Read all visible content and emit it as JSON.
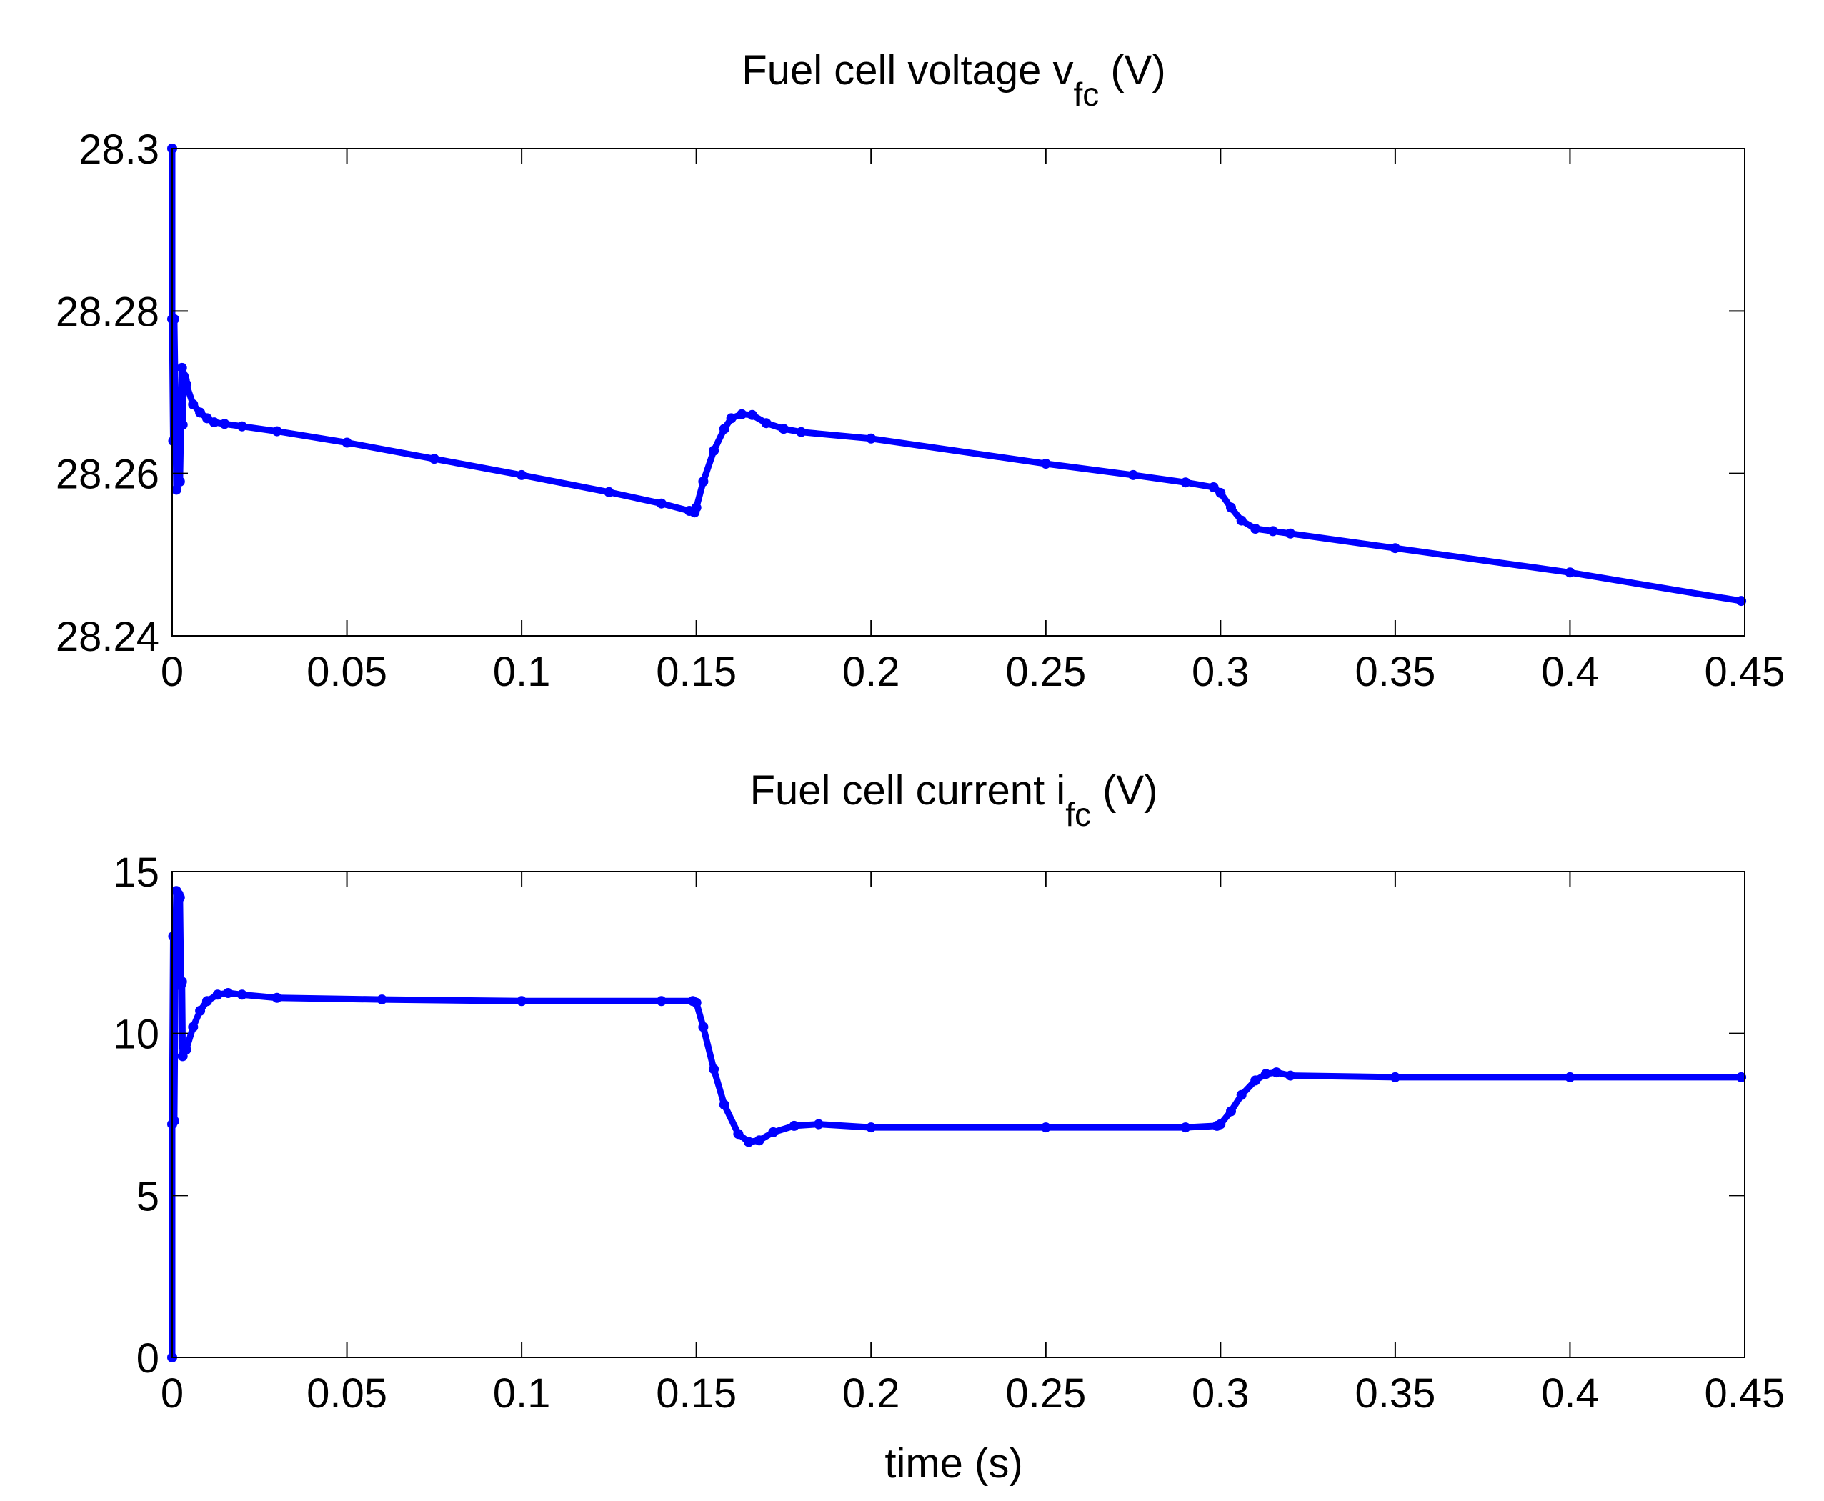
{
  "chart_data": [
    {
      "type": "line",
      "title": "Fuel cell voltage v",
      "title_sub": "fc",
      "title_suffix": " (V)",
      "xlabel": "",
      "ylabel": "",
      "xlim": [
        0,
        0.45
      ],
      "ylim": [
        28.24,
        28.3
      ],
      "xticks": [
        "0",
        "0.05",
        "0.1",
        "0.15",
        "0.2",
        "0.25",
        "0.3",
        "0.35",
        "0.4",
        "0.45"
      ],
      "yticks": [
        "28.24",
        "28.26",
        "28.28",
        "28.3"
      ],
      "grid": false,
      "series": [
        {
          "color": "#0000ff",
          "x": [
            0,
            0,
            0.0003,
            0.0006,
            0.001,
            0.0012,
            0.0015,
            0.0018,
            0.002,
            0.0022,
            0.0025,
            0.0028,
            0.003,
            0.0033,
            0.0036,
            0.004,
            0.006,
            0.008,
            0.01,
            0.012,
            0.015,
            0.02,
            0.03,
            0.05,
            0.075,
            0.1,
            0.125,
            0.14,
            0.148,
            0.1495,
            0.15,
            0.152,
            0.155,
            0.158,
            0.16,
            0.163,
            0.166,
            0.17,
            0.175,
            0.18,
            0.2,
            0.25,
            0.275,
            0.29,
            0.298,
            0.3,
            0.303,
            0.306,
            0.31,
            0.315,
            0.32,
            0.35,
            0.4,
            0.449
          ],
          "y": [
            28.3,
            28.279,
            28.264,
            28.279,
            28.266,
            28.258,
            28.266,
            28.259,
            28.266,
            28.259,
            28.266,
            28.273,
            28.266,
            28.272,
            28.2715,
            28.271,
            28.2685,
            28.2675,
            28.2668,
            28.2663,
            28.2661,
            28.2658,
            28.2652,
            28.2638,
            28.2618,
            28.2598,
            28.2577,
            28.2563,
            28.2554,
            28.2552,
            28.2558,
            28.259,
            28.2628,
            28.2655,
            28.2668,
            28.2673,
            28.2672,
            28.2662,
            28.2655,
            28.2651,
            28.2643,
            28.2612,
            28.2598,
            28.2589,
            28.2583,
            28.2576,
            28.2558,
            28.2542,
            28.2532,
            28.2529,
            28.2526,
            28.2508,
            28.2478,
            28.2443
          ]
        }
      ]
    },
    {
      "type": "line",
      "title": "Fuel cell current i",
      "title_sub": "fc",
      "title_suffix": " (V)",
      "xlabel": "time (s)",
      "ylabel": "",
      "xlim": [
        0,
        0.45
      ],
      "ylim": [
        0,
        15
      ],
      "xticks": [
        "0",
        "0.05",
        "0.1",
        "0.15",
        "0.2",
        "0.25",
        "0.3",
        "0.35",
        "0.4",
        "0.45"
      ],
      "yticks": [
        "0",
        "5",
        "10",
        "15"
      ],
      "grid": false,
      "series": [
        {
          "color": "#0000ff",
          "x": [
            0,
            0,
            0.0003,
            0.0006,
            0.001,
            0.0012,
            0.0015,
            0.0018,
            0.002,
            0.0022,
            0.0025,
            0.0028,
            0.003,
            0.0033,
            0.0036,
            0.004,
            0.006,
            0.008,
            0.01,
            0.013,
            0.016,
            0.02,
            0.03,
            0.06,
            0.1,
            0.14,
            0.149,
            0.15,
            0.152,
            0.155,
            0.158,
            0.162,
            0.165,
            0.168,
            0.172,
            0.178,
            0.185,
            0.2,
            0.25,
            0.29,
            0.299,
            0.3,
            0.303,
            0.306,
            0.31,
            0.313,
            0.316,
            0.32,
            0.35,
            0.4,
            0.449
          ],
          "y": [
            0,
            7.2,
            13.0,
            7.3,
            13.0,
            14.4,
            11.5,
            14.3,
            12.2,
            14.2,
            11.5,
            11.6,
            9.3,
            9.6,
            9.5,
            9.5,
            10.2,
            10.7,
            11.0,
            11.2,
            11.25,
            11.2,
            11.1,
            11.05,
            11.0,
            11.0,
            11.0,
            10.95,
            10.2,
            8.9,
            7.8,
            6.9,
            6.65,
            6.7,
            6.95,
            7.15,
            7.2,
            7.1,
            7.1,
            7.1,
            7.15,
            7.2,
            7.6,
            8.1,
            8.55,
            8.75,
            8.8,
            8.7,
            8.65,
            8.65,
            8.65
          ]
        }
      ]
    }
  ]
}
